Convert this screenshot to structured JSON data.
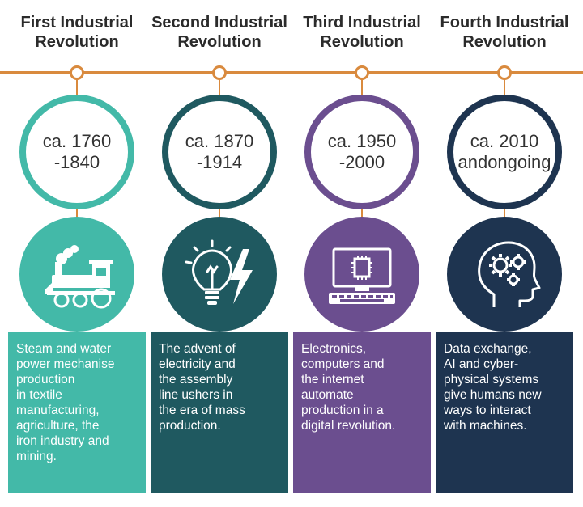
{
  "columns": [
    {
      "title_lines": [
        "First Industrial",
        "Revolution"
      ],
      "date_lines": [
        "ca. 1760",
        "-1840"
      ],
      "description_lines": [
        "Steam and water",
        "power mechanise",
        "production",
        "in textile",
        "manufacturing,",
        "agriculture, the",
        "iron industry and",
        "mining."
      ],
      "icon": "steam-train-icon",
      "color": "#43b9a8"
    },
    {
      "title_lines": [
        "Second Industrial",
        "Revolution"
      ],
      "date_lines": [
        "ca. 1870",
        "-1914"
      ],
      "description_lines": [
        "The advent of",
        "electricity and",
        "the assembly",
        "line ushers in",
        "the era of mass",
        "production."
      ],
      "icon": "lightbulb-lightning-icon",
      "color": "#1f5960"
    },
    {
      "title_lines": [
        "Third Industrial",
        "Revolution"
      ],
      "date_lines": [
        "ca. 1950",
        "-2000"
      ],
      "description_lines": [
        "Electronics,",
        "computers and",
        "the internet",
        "automate",
        "production in a",
        "digital revolution."
      ],
      "icon": "computer-icon",
      "color": "#6b4e8f"
    },
    {
      "title_lines": [
        "Fourth Industrial",
        "Revolution"
      ],
      "date_lines": [
        "ca. 2010",
        "andongoing"
      ],
      "description_lines": [
        "Data exchange,",
        "AI and cyber-",
        "physical systems",
        "give humans new",
        "ways to interact",
        "with machines."
      ],
      "icon": "head-gears-icon",
      "color": "#1e3450"
    }
  ],
  "accent_color": "#d98a3e"
}
